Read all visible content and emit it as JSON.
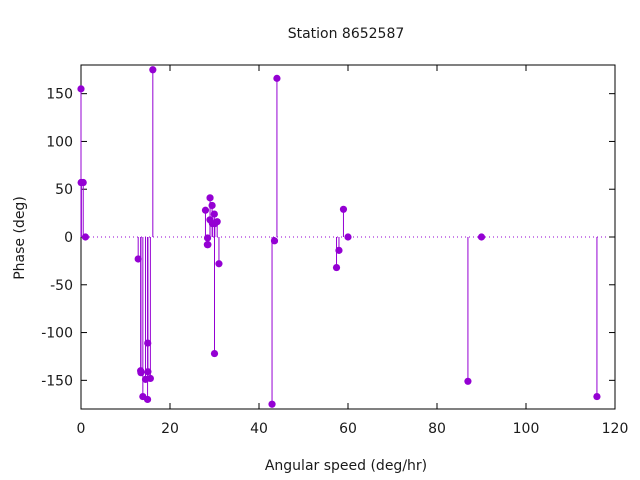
{
  "chart_data": {
    "type": "scatter",
    "style": "impulses-with-points",
    "title": "Station 8652587",
    "xlabel": "Angular speed (deg/hr)",
    "ylabel": "Phase (deg)",
    "xlim": [
      0,
      120
    ],
    "ylim": [
      -180,
      180
    ],
    "xticks": [
      0,
      20,
      40,
      60,
      80,
      100,
      120
    ],
    "yticks": [
      -150,
      -100,
      -50,
      0,
      50,
      100,
      150
    ],
    "grid": false,
    "zero_line": "dotted",
    "color": "#9400d3",
    "series": [
      {
        "points": [
          [
            0.0,
            155
          ],
          [
            0.04,
            57
          ],
          [
            0.08,
            57
          ],
          [
            0.5,
            57
          ],
          [
            1.0,
            0
          ],
          [
            12.85,
            -23
          ],
          [
            13.4,
            -140
          ],
          [
            13.47,
            -142
          ],
          [
            13.9,
            -167
          ],
          [
            14.5,
            -149
          ],
          [
            14.96,
            -170
          ],
          [
            15.0,
            -111
          ],
          [
            15.04,
            -141
          ],
          [
            15.59,
            -148
          ],
          [
            16.14,
            175
          ],
          [
            27.97,
            28
          ],
          [
            28.4,
            -8
          ],
          [
            28.44,
            -1
          ],
          [
            28.51,
            -8
          ],
          [
            28.98,
            18
          ],
          [
            29.0,
            41
          ],
          [
            29.46,
            33
          ],
          [
            29.53,
            14
          ],
          [
            29.96,
            24
          ],
          [
            30.0,
            -122
          ],
          [
            30.08,
            14
          ],
          [
            30.6,
            16
          ],
          [
            31.0,
            -28
          ],
          [
            42.93,
            -175
          ],
          [
            43.48,
            -4
          ],
          [
            44.03,
            166
          ],
          [
            57.42,
            -32
          ],
          [
            57.97,
            -14
          ],
          [
            58.98,
            29
          ],
          [
            60.0,
            0
          ],
          [
            86.95,
            -151
          ],
          [
            90.0,
            0
          ],
          [
            115.94,
            -167
          ]
        ]
      }
    ]
  }
}
